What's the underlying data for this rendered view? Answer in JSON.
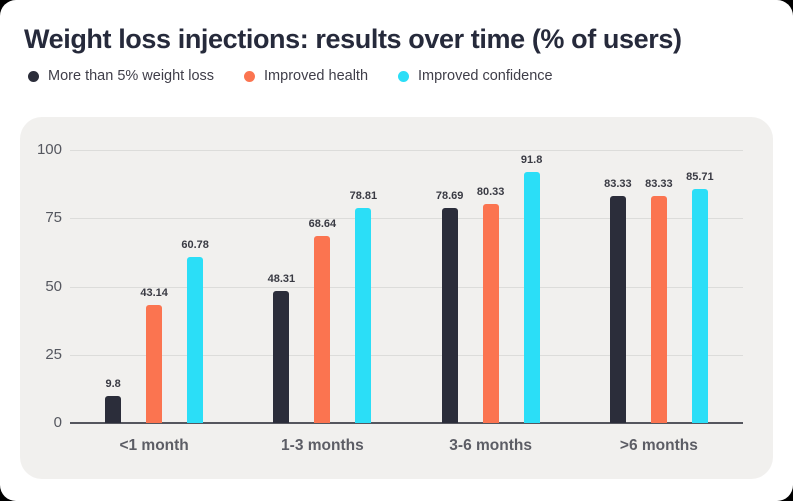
{
  "header": {
    "title": "Weight loss injections: results over time (% of users)"
  },
  "legend": {
    "items": [
      {
        "label": "More than 5% weight loss",
        "color": "#2b2d3a"
      },
      {
        "label": "Improved health",
        "color": "#fb7450"
      },
      {
        "label": "Improved confidence",
        "color": "#2bdef7"
      }
    ]
  },
  "chart_data": {
    "type": "bar",
    "title": "Weight loss injections: results over time (% of users)",
    "categories": [
      "<1 month",
      "1-3 months",
      "3-6 months",
      ">6 months"
    ],
    "series": [
      {
        "name": "More than 5% weight loss",
        "color": "#2b2d3a",
        "values": [
          9.8,
          48.31,
          78.69,
          83.33
        ]
      },
      {
        "name": "Improved health",
        "color": "#fb7450",
        "values": [
          43.14,
          68.64,
          80.33,
          83.33
        ]
      },
      {
        "name": "Improved confidence",
        "color": "#2bdef7",
        "values": [
          60.78,
          78.81,
          91.8,
          85.71
        ]
      }
    ],
    "value_labels": [
      [
        "9.8",
        "48.31",
        "78.69",
        "83.33"
      ],
      [
        "43.14",
        "68.64",
        "80.33",
        "83.33"
      ],
      [
        "60.78",
        "78.81",
        "91.8",
        "85.71"
      ]
    ],
    "xlabel": "",
    "ylabel": "",
    "y_ticks": [
      0,
      25,
      50,
      75,
      100
    ],
    "ylim": [
      0,
      100
    ],
    "grid": true,
    "legend_position": "top"
  },
  "colors": {
    "page_bg": "#000000",
    "card_bg": "#ffffff",
    "panel_bg": "#f1f0ee",
    "gridline": "#dcdcda",
    "axis_line": "#55565e",
    "title_text": "#262a3b",
    "tick_text": "#55575f",
    "category_text": "#5c5d65",
    "value_text": "#393a43"
  }
}
